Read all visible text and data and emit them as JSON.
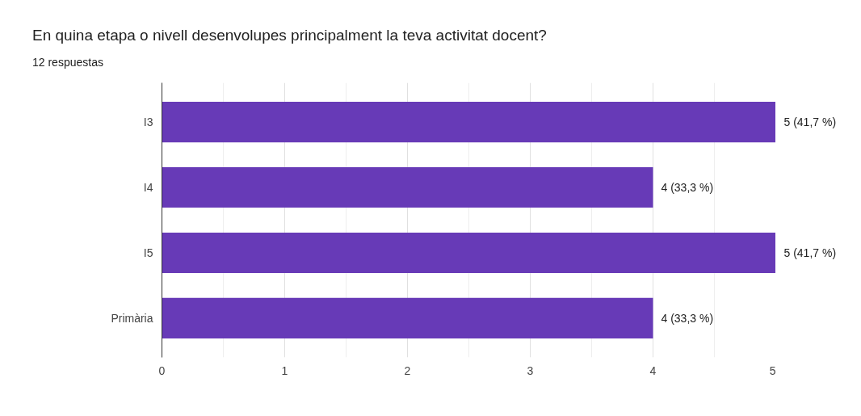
{
  "chart_data": {
    "type": "bar",
    "orientation": "horizontal",
    "title": "En quina etapa o nivell desenvolupes principalment la teva activitat docent?",
    "subtitle": "12 respuestas",
    "categories": [
      "I3",
      "I4",
      "I5",
      "Primària"
    ],
    "values": [
      5,
      4,
      5,
      4
    ],
    "color": "#673ab7",
    "value_labels": [
      "5 (41,7 %)",
      "4 (33,3 %)",
      "5 (41,7 %)",
      "4 (33,3 %)"
    ],
    "xlim": [
      0,
      5
    ],
    "xticks": [
      0,
      1,
      2,
      3,
      4,
      5
    ],
    "grid": "x"
  }
}
